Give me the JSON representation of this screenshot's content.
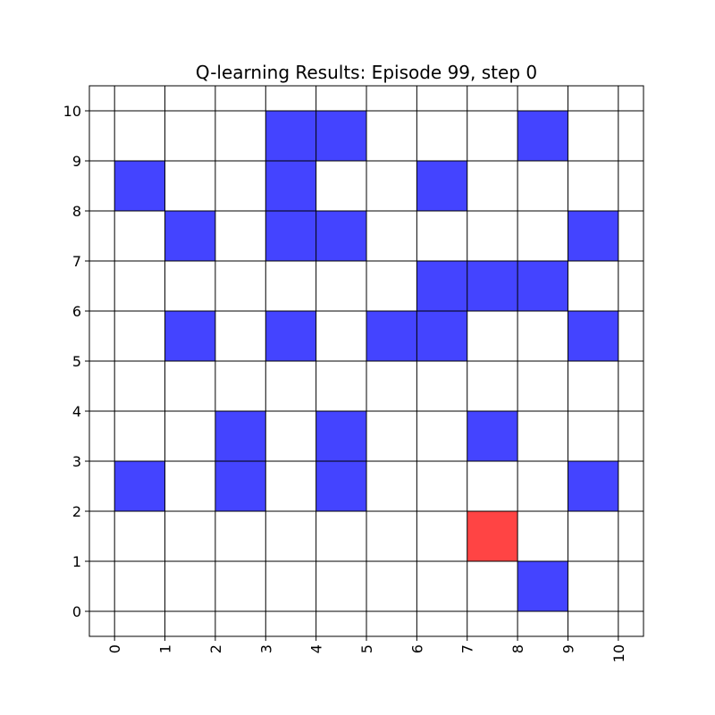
{
  "chart_data": {
    "type": "heatmap",
    "title": "Q-learning Results: Episode 99, step 0",
    "xlabel": "",
    "ylabel": "",
    "x_ticks": [
      "0",
      "1",
      "2",
      "3",
      "4",
      "5",
      "6",
      "7",
      "8",
      "9",
      "10"
    ],
    "y_ticks": [
      "0",
      "1",
      "2",
      "3",
      "4",
      "5",
      "6",
      "7",
      "8",
      "9",
      "10"
    ],
    "xlim": [
      -0.5,
      10.5
    ],
    "ylim": [
      -0.5,
      10.5
    ],
    "grid": true,
    "colors": {
      "obstacle": "#4444ff",
      "agent": "#ff4444",
      "grid_line": "#000000",
      "background": "#ffffff"
    },
    "obstacle_cells": [
      [
        3,
        9
      ],
      [
        4,
        9
      ],
      [
        8,
        9
      ],
      [
        0,
        8
      ],
      [
        3,
        8
      ],
      [
        6,
        8
      ],
      [
        1,
        7
      ],
      [
        3,
        7
      ],
      [
        4,
        7
      ],
      [
        9,
        7
      ],
      [
        6,
        6
      ],
      [
        7,
        6
      ],
      [
        8,
        6
      ],
      [
        1,
        5
      ],
      [
        3,
        5
      ],
      [
        5,
        5
      ],
      [
        6,
        5
      ],
      [
        9,
        5
      ],
      [
        2,
        3
      ],
      [
        4,
        3
      ],
      [
        7,
        3
      ],
      [
        0,
        2
      ],
      [
        2,
        2
      ],
      [
        4,
        2
      ],
      [
        9,
        2
      ],
      [
        8,
        0
      ]
    ],
    "agent_cells": [
      [
        7,
        1
      ]
    ]
  }
}
